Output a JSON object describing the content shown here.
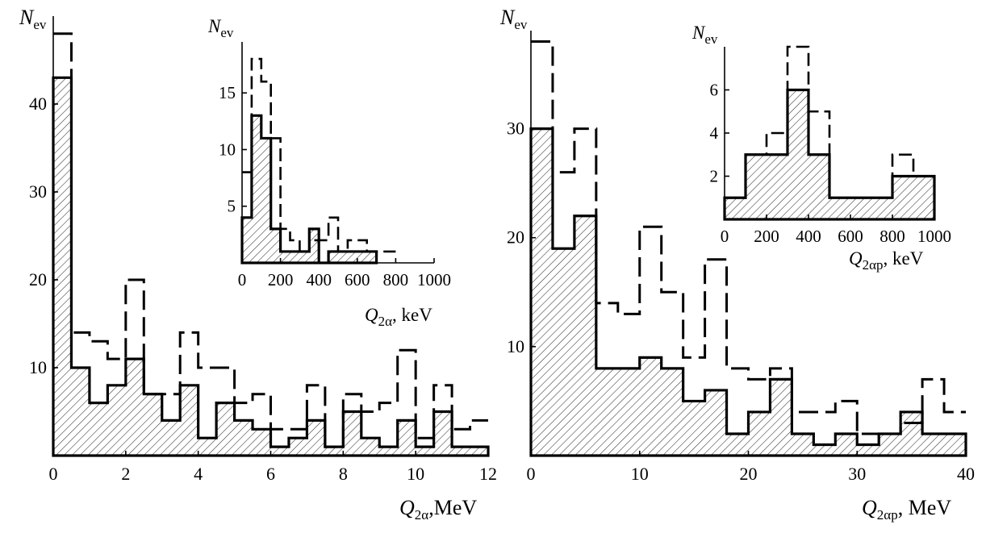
{
  "chart_data": [
    {
      "id": "left-main",
      "type": "histogram",
      "ylabel": "N",
      "ylabel_sub": "ev",
      "xlabel": "Q",
      "xlabel_sub": "2α",
      "xlabel_unit": ",MeV",
      "xlim": [
        0,
        12
      ],
      "ylim": [
        0,
        50
      ],
      "xticks": [
        0,
        2,
        4,
        6,
        8,
        10,
        12
      ],
      "yticks": [
        10,
        20,
        30,
        40
      ],
      "bin_width": 0.5,
      "series": [
        {
          "style": "solid-hatched",
          "values": [
            43,
            10,
            6,
            8,
            11,
            7,
            4,
            8,
            2,
            6,
            4,
            3,
            1,
            2,
            4,
            1,
            5,
            2,
            1,
            4,
            1,
            5,
            1,
            1
          ]
        },
        {
          "style": "dashed",
          "values": [
            48,
            14,
            13,
            11,
            20,
            7,
            7,
            14,
            10,
            10,
            6,
            7,
            3,
            3,
            8,
            1,
            7,
            5,
            6,
            12,
            2,
            8,
            3,
            4
          ]
        }
      ]
    },
    {
      "id": "left-inset",
      "type": "histogram",
      "ylabel": "N",
      "ylabel_sub": "ev",
      "xlabel": "Q",
      "xlabel_sub": "2α",
      "xlabel_unit": ", keV",
      "xlim": [
        0,
        1000
      ],
      "ylim": [
        0,
        19.5
      ],
      "xticks": [
        0,
        200,
        400,
        600,
        800,
        1000
      ],
      "yticks": [
        5,
        10,
        15
      ],
      "bin_width": 50,
      "series": [
        {
          "style": "solid-hatched",
          "values": [
            4,
            13,
            11,
            3,
            1,
            1,
            1,
            3,
            0,
            1,
            1,
            1,
            1,
            1
          ]
        },
        {
          "style": "dashed",
          "values": [
            8,
            18,
            16,
            11,
            3,
            2,
            1,
            2,
            2,
            4,
            1,
            2,
            2,
            1,
            1,
            1
          ]
        }
      ]
    },
    {
      "id": "right-main",
      "type": "histogram",
      "ylabel": "N",
      "ylabel_sub": "ev",
      "xlabel": "Q",
      "xlabel_sub": "2αp",
      "xlabel_unit": ", MeV",
      "xlim": [
        0,
        40
      ],
      "ylim": [
        0,
        39
      ],
      "xticks": [
        0,
        10,
        20,
        30,
        40
      ],
      "yticks": [
        10,
        20,
        30
      ],
      "bin_width": 2,
      "series": [
        {
          "style": "solid-hatched",
          "values": [
            30,
            19,
            22,
            8,
            8,
            9,
            8,
            5,
            6,
            2,
            4,
            7,
            2,
            1,
            2,
            1,
            2,
            4,
            2,
            2
          ]
        },
        {
          "style": "dashed",
          "values": [
            38,
            26,
            30,
            14,
            13,
            21,
            15,
            9,
            18,
            8,
            7,
            8,
            4,
            4,
            5,
            2,
            2,
            3,
            7,
            4
          ]
        }
      ]
    },
    {
      "id": "right-inset",
      "type": "histogram",
      "ylabel": "N",
      "ylabel_sub": "ev",
      "xlabel": "Q",
      "xlabel_sub": "2αp",
      "xlabel_unit": ", keV",
      "xlim": [
        0,
        1000
      ],
      "ylim": [
        0,
        8
      ],
      "xticks": [
        0,
        200,
        400,
        600,
        800,
        1000
      ],
      "yticks": [
        2,
        4,
        6
      ],
      "bin_width": 100,
      "series": [
        {
          "style": "solid-hatched",
          "values": [
            1,
            3,
            3,
            6,
            3,
            1,
            1,
            1,
            2,
            2
          ]
        },
        {
          "style": "dashed",
          "values": [
            1,
            3,
            4,
            8,
            5,
            1,
            1,
            1,
            3,
            2
          ]
        }
      ]
    }
  ]
}
